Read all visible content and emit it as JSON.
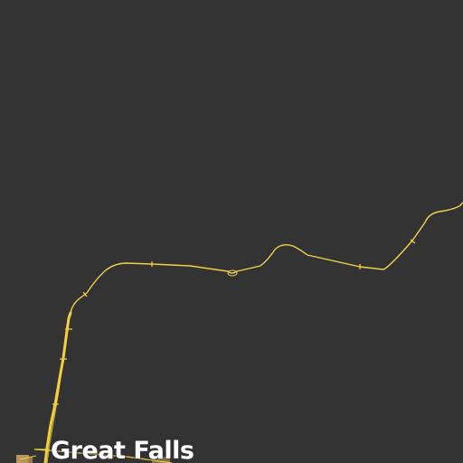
{
  "map": {
    "background_color": "#333333",
    "road_color": "#f0d24a",
    "highway_color": "#f5cf3a",
    "settlement_color": "#c8a060",
    "label_color": "#ffffff"
  },
  "labels": {
    "city": "Great Falls"
  }
}
